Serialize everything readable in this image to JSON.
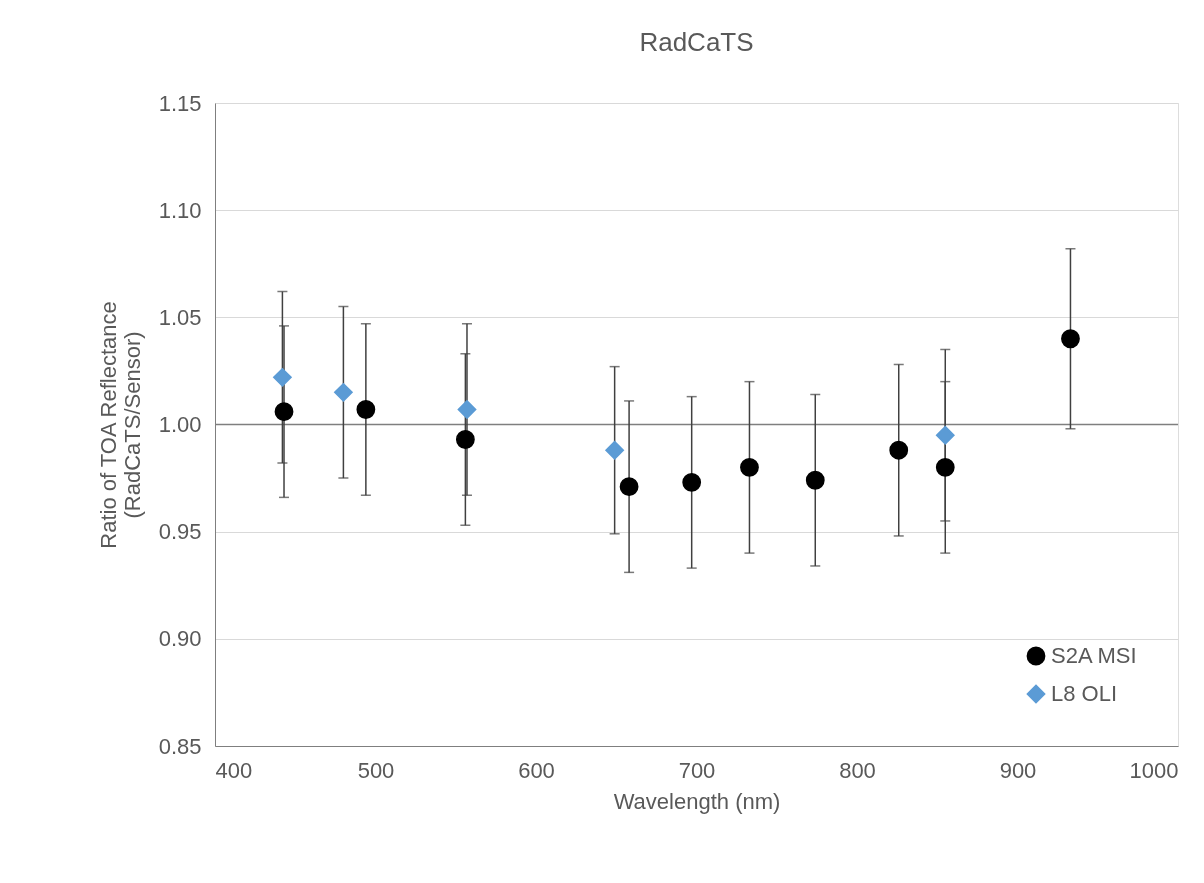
{
  "chart_data": {
    "type": "scatter",
    "title": "RadCaTS",
    "xlabel": "Wavelength (nm)",
    "ylabel": "Ratio of TOA Reflectance\n(RadCaTS/Sensor)",
    "xlim": [
      400,
      1000
    ],
    "xticks": [
      400,
      500,
      600,
      700,
      800,
      900,
      1000
    ],
    "ylim": [
      0.85,
      1.15
    ],
    "yticks": [
      {
        "value": 0.85,
        "label": "0.85"
      },
      {
        "value": 0.9,
        "label": "0.90"
      },
      {
        "value": 0.95,
        "label": "0.95"
      },
      {
        "value": 1.0,
        "label": "1.00"
      },
      {
        "value": 1.05,
        "label": "1.05"
      },
      {
        "value": 1.1,
        "label": "1.10"
      },
      {
        "value": 1.15,
        "label": "1.15"
      }
    ],
    "grid": "y",
    "legend": "bottom right",
    "ref_lines": [
      {
        "axis": "y",
        "value": 1.0,
        "color": "#7f7f7f"
      }
    ],
    "series": [
      {
        "name": "S2A MSI",
        "type": "scatter",
        "marker": "circle",
        "color": "#000000",
        "x": [
          443,
          494,
          556,
          658,
          697,
          733,
          774,
          826,
          855,
          933
        ],
        "values": [
          1.006,
          1.007,
          0.993,
          0.971,
          0.973,
          0.98,
          0.974,
          0.988,
          0.98,
          1.04
        ],
        "errors": [
          0.04,
          0.04,
          0.04,
          0.04,
          0.04,
          0.04,
          0.04,
          0.04,
          0.04,
          0.042
        ]
      },
      {
        "name": "L8 OLI",
        "type": "scatter",
        "marker": "diamond",
        "color": "#5b9bd5",
        "x": [
          442,
          480,
          557,
          649,
          855
        ],
        "values": [
          1.022,
          1.015,
          1.007,
          0.988,
          0.995
        ],
        "errors": [
          0.04,
          0.04,
          0.04,
          0.039,
          0.04
        ]
      }
    ]
  }
}
